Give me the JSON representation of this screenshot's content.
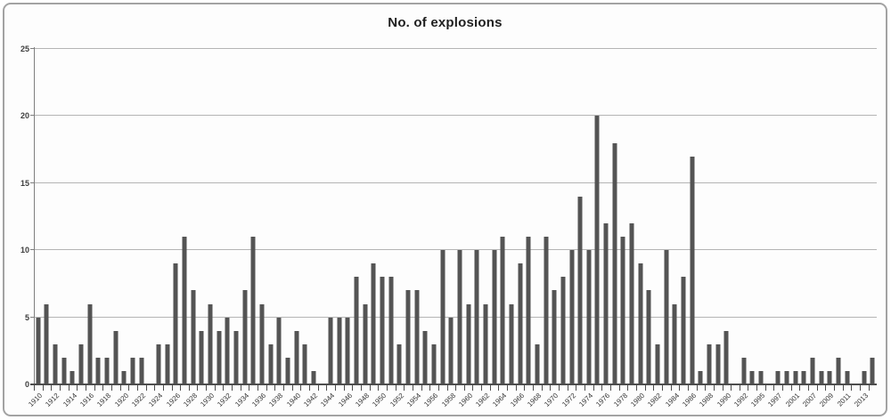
{
  "chart_data": {
    "type": "bar",
    "title": "No. of explosions",
    "xlabel": "",
    "ylabel": "",
    "ylim": [
      0,
      25
    ],
    "ytick_step": 5,
    "yticks": [
      "0",
      "5",
      "10",
      "15",
      "20",
      "25"
    ],
    "grid": true,
    "legend": "none",
    "label_every": 2,
    "bar_color": "#545454",
    "grid_color": "#b4b4b4",
    "axis_color": "#4d4d4d",
    "text_color": "#333333",
    "categories": [
      "1910",
      "1911",
      "1912",
      "1913",
      "1914",
      "1915",
      "1916",
      "1917",
      "1918",
      "1919",
      "1920",
      "1921",
      "1922",
      "1923",
      "1924",
      "1925",
      "1926",
      "1927",
      "1928",
      "1929",
      "1930",
      "1931",
      "1932",
      "1933",
      "1934",
      "1935",
      "1936",
      "1937",
      "1938",
      "1939",
      "1940",
      "1941",
      "1942",
      "1943",
      "1944",
      "1945",
      "1946",
      "1947",
      "1948",
      "1949",
      "1950",
      "1951",
      "1952",
      "1953",
      "1954",
      "1955",
      "1956",
      "1957",
      "1958",
      "1959",
      "1960",
      "1961",
      "1962",
      "1963",
      "1964",
      "1965",
      "1966",
      "1967",
      "1968",
      "1969",
      "1970",
      "1971",
      "1972",
      "1973",
      "1974",
      "1975",
      "1976",
      "1977",
      "1978",
      "1979",
      "1980",
      "1981",
      "1982",
      "1983",
      "1984",
      "1985",
      "1986",
      "1987",
      "1988",
      "1989",
      "1990",
      "1991",
      "1992",
      "1994",
      "1995",
      "1996",
      "1997",
      "1998",
      "2001",
      "2004",
      "2007",
      "2008",
      "2009",
      "2010",
      "2011",
      "2012",
      "2013",
      "2015"
    ],
    "values": [
      5,
      6,
      3,
      2,
      1,
      3,
      6,
      2,
      2,
      4,
      1,
      2,
      2,
      0,
      3,
      3,
      9,
      11,
      7,
      4,
      6,
      4,
      5,
      4,
      7,
      11,
      6,
      3,
      5,
      2,
      4,
      3,
      1,
      0,
      5,
      5,
      5,
      8,
      6,
      9,
      8,
      8,
      3,
      7,
      7,
      4,
      3,
      10,
      5,
      10,
      6,
      10,
      6,
      10,
      11,
      6,
      9,
      11,
      3,
      11,
      7,
      8,
      10,
      14,
      10,
      20,
      12,
      18,
      11,
      12,
      9,
      7,
      3,
      10,
      6,
      8,
      17,
      1,
      3,
      3,
      4,
      0,
      2,
      1,
      1,
      0,
      1,
      1,
      1,
      1,
      2,
      1,
      1,
      2,
      1,
      0,
      1,
      2
    ]
  }
}
